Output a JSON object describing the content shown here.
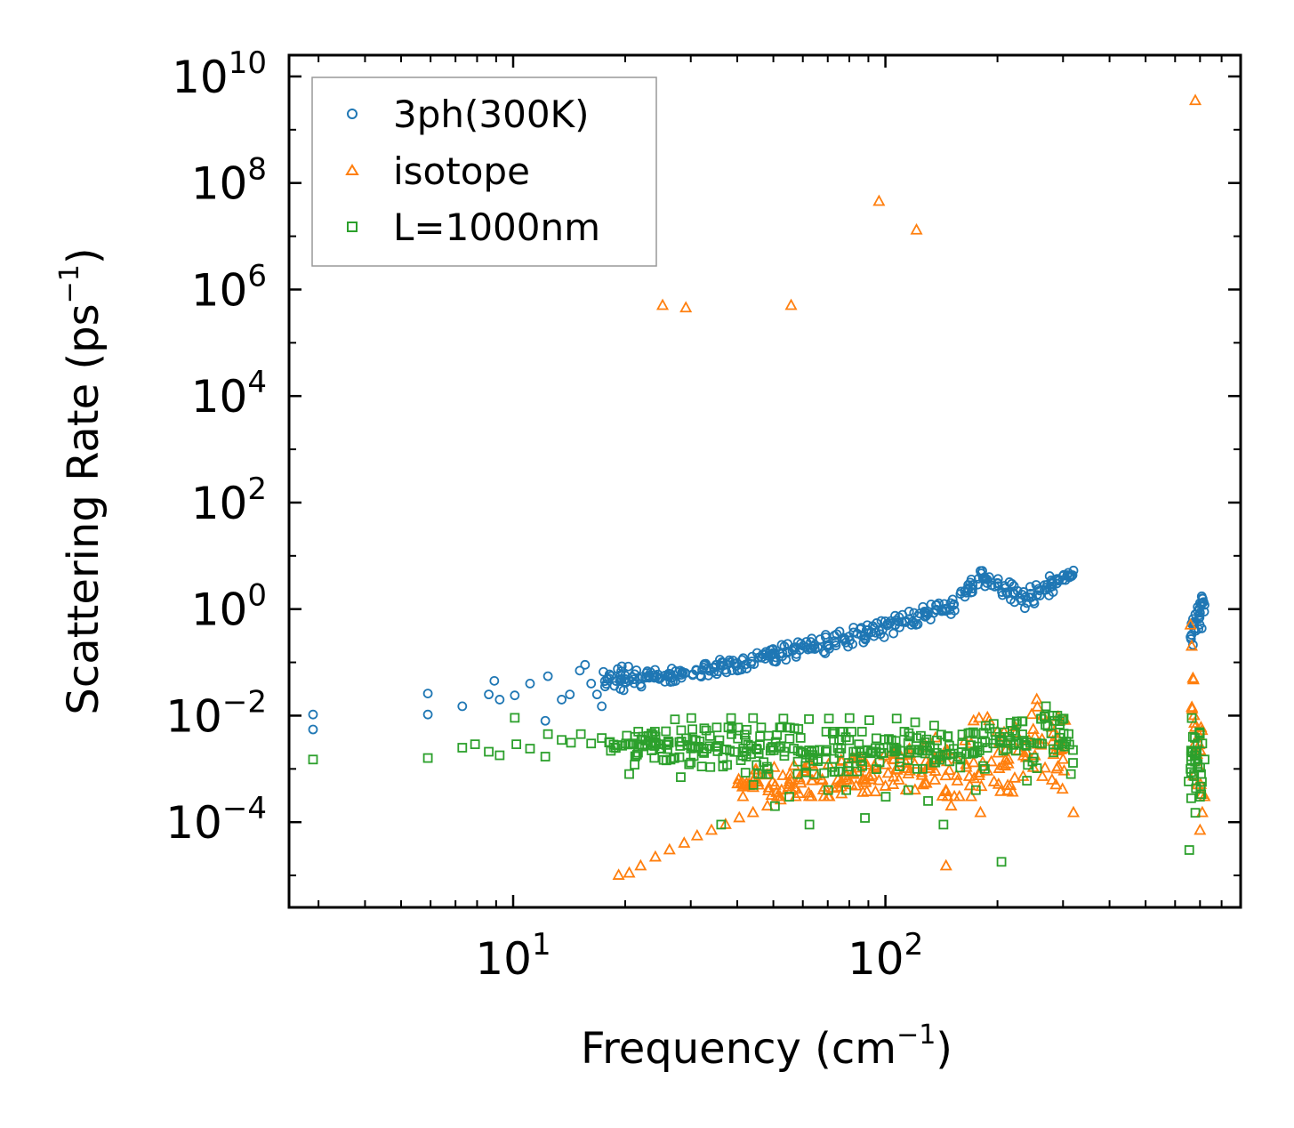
{
  "chart_data": {
    "type": "scatter",
    "xlabel": "Frequency (cm",
    "xlabel_sup": "−1",
    "xlabel_end": ")",
    "ylabel": "Scattering Rate (ps",
    "ylabel_sup": "−1",
    "ylabel_end": ")",
    "xscale": "log",
    "yscale": "log",
    "xlim": [
      2.5,
      900
    ],
    "ylim_log10": [
      -5.6,
      10.4
    ],
    "x_ticks": [
      {
        "value": 10,
        "base": "10",
        "exp": "1"
      },
      {
        "value": 100,
        "base": "10",
        "exp": "2"
      }
    ],
    "y_ticks": [
      {
        "value_log10": 10,
        "base": "10",
        "exp": "10"
      },
      {
        "value_log10": 8,
        "base": "10",
        "exp": "8"
      },
      {
        "value_log10": 6,
        "base": "10",
        "exp": "6"
      },
      {
        "value_log10": 4,
        "base": "10",
        "exp": "4"
      },
      {
        "value_log10": 2,
        "base": "10",
        "exp": "2"
      },
      {
        "value_log10": 0,
        "base": "10",
        "exp": "0"
      },
      {
        "value_log10": -2,
        "base": "10",
        "exp": "−2"
      },
      {
        "value_log10": -4,
        "base": "10",
        "exp": "−4"
      }
    ],
    "legend_position": "upper-left",
    "series": [
      {
        "name": "3ph(300K)",
        "marker": "circle",
        "color": "#1f77b4",
        "points": [
          [
            2.9,
            0.0105
          ],
          [
            2.9,
            0.0055
          ],
          [
            5.9,
            0.026
          ],
          [
            5.9,
            0.0105
          ],
          [
            7.3,
            0.015
          ],
          [
            8.6,
            0.025
          ],
          [
            8.9,
            0.045
          ],
          [
            9.2,
            0.02
          ],
          [
            10.1,
            0.024
          ],
          [
            11.1,
            0.04
          ],
          [
            12.4,
            0.055
          ],
          [
            12.2,
            0.008
          ],
          [
            13.5,
            0.02
          ],
          [
            14.2,
            0.025
          ],
          [
            15.1,
            0.07
          ],
          [
            15.6,
            0.09
          ],
          [
            16.2,
            0.04
          ],
          [
            16.8,
            0.025
          ],
          [
            17.3,
            0.015
          ],
          [
            18.1,
            0.05
          ],
          [
            19.1,
            0.075
          ],
          [
            19.8,
            0.03
          ],
          [
            20.5,
            0.045
          ],
          [
            21.2,
            0.06
          ],
          [
            22.1,
            0.035
          ],
          [
            23.4,
            0.065
          ],
          [
            24.8,
            0.05
          ],
          [
            26.2,
            0.055
          ],
          [
            28.1,
            0.07
          ],
          [
            30.4,
            0.06
          ],
          [
            32.5,
            0.08
          ],
          [
            35.1,
            0.09
          ],
          [
            38.2,
            0.1
          ],
          [
            41.5,
            0.12
          ],
          [
            45.2,
            0.15
          ],
          [
            49.1,
            0.17
          ],
          [
            53.5,
            0.2
          ],
          [
            58.2,
            0.24
          ],
          [
            63.4,
            0.28
          ],
          [
            69.1,
            0.33
          ],
          [
            75.3,
            0.38
          ],
          [
            82.1,
            0.45
          ],
          [
            89.4,
            0.5
          ],
          [
            97.5,
            0.6
          ],
          [
            106.2,
            0.75
          ],
          [
            115.8,
            0.9
          ],
          [
            126.1,
            1.1
          ],
          [
            137.4,
            1.2
          ],
          [
            149.7,
            1.3
          ],
          [
            180,
            5.2
          ],
          [
            190,
            4.0
          ],
          [
            200,
            3.1
          ],
          [
            210,
            2.5
          ],
          [
            220,
            2.0
          ],
          [
            230,
            1.6
          ],
          [
            240,
            1.3
          ],
          [
            250,
            1.4
          ],
          [
            260,
            1.8
          ],
          [
            270,
            2.3
          ],
          [
            280,
            3.0
          ],
          [
            290,
            3.6
          ],
          [
            300,
            4.2
          ],
          [
            310,
            4.8
          ],
          [
            320,
            5.3
          ],
          [
            660,
            0.3
          ],
          [
            670,
            0.5
          ],
          [
            680,
            0.8
          ],
          [
            690,
            1.1
          ],
          [
            700,
            1.3
          ],
          [
            710,
            1.6
          ],
          [
            720,
            1.2
          ]
        ],
        "band": [
          [
            17,
            0.03,
            0.08
          ],
          [
            20,
            0.03,
            0.085
          ],
          [
            25,
            0.04,
            0.07
          ],
          [
            30,
            0.05,
            0.09
          ],
          [
            40,
            0.07,
            0.13
          ],
          [
            50,
            0.1,
            0.2
          ],
          [
            60,
            0.13,
            0.25
          ],
          [
            70,
            0.15,
            0.3
          ],
          [
            80,
            0.2,
            0.4
          ],
          [
            90,
            0.25,
            0.5
          ],
          [
            100,
            0.3,
            0.6
          ],
          [
            110,
            0.4,
            0.8
          ],
          [
            120,
            0.5,
            1.0
          ],
          [
            130,
            0.6,
            1.2
          ],
          [
            140,
            0.7,
            1.3
          ],
          [
            150,
            0.8,
            1.4
          ],
          [
            180,
            3.0,
            5.5
          ],
          [
            200,
            2.0,
            4.0
          ],
          [
            220,
            1.3,
            3.0
          ],
          [
            240,
            1.0,
            2.5
          ],
          [
            260,
            1.3,
            3.0
          ],
          [
            280,
            2.0,
            4.5
          ],
          [
            300,
            3.0,
            5.0
          ],
          [
            320,
            3.5,
            5.5
          ],
          [
            660,
            0.15,
            1.0
          ],
          [
            680,
            0.3,
            1.5
          ],
          [
            700,
            0.4,
            1.7
          ],
          [
            720,
            0.5,
            1.8
          ]
        ]
      },
      {
        "name": "isotope",
        "marker": "triangle",
        "color": "#ff7f0e",
        "points": [
          [
            25.2,
            500000
          ],
          [
            29.1,
            450000
          ],
          [
            55.8,
            500000
          ],
          [
            96.1,
            45000000
          ],
          [
            121.2,
            13000000
          ],
          [
            680,
            3500000000
          ],
          [
            19.2,
            1e-05
          ],
          [
            20.5,
            1.1e-05
          ],
          [
            22.0,
            1.5e-05
          ],
          [
            24.1,
            2.2e-05
          ],
          [
            26.3,
            3e-05
          ],
          [
            28.8,
            4e-05
          ],
          [
            31.2,
            5.5e-05
          ],
          [
            34.1,
            7e-05
          ],
          [
            37.2,
            9e-05
          ],
          [
            40.5,
            0.00012
          ],
          [
            44.1,
            0.00015
          ],
          [
            48.2,
            0.0002
          ],
          [
            52.3,
            0.00026
          ],
          [
            57.4,
            0.0003
          ],
          [
            62.2,
            0.00035
          ],
          [
            68.1,
            0.0004
          ],
          [
            74.2,
            0.00045
          ],
          [
            81.1,
            0.0005
          ],
          [
            88.5,
            0.00055
          ],
          [
            96.1,
            0.0006
          ],
          [
            105.2,
            0.0007
          ],
          [
            115.3,
            0.0008
          ],
          [
            125.2,
            0.00085
          ],
          [
            136.1,
            0.0009
          ],
          [
            145.5,
            1.5e-05
          ],
          [
            150.2,
            0.0002
          ],
          [
            180,
            0.00015
          ],
          [
            190,
            0.008
          ],
          [
            200,
            0.005
          ],
          [
            220,
            0.003
          ],
          [
            240,
            0.002
          ],
          [
            255,
            0.02
          ],
          [
            265,
            0.01
          ],
          [
            280,
            0.006
          ],
          [
            300,
            0.0015
          ],
          [
            320,
            0.00015
          ],
          [
            660,
            0.5
          ],
          [
            665,
            0.2
          ],
          [
            670,
            0.05
          ],
          [
            675,
            0.01
          ],
          [
            680,
            0.002
          ],
          [
            690,
            0.0005
          ],
          [
            700,
            7e-05
          ],
          [
            710,
            0.00015
          ],
          [
            720,
            0.0003
          ]
        ],
        "band": [
          [
            40,
            0.0003,
            0.0009
          ],
          [
            60,
            0.0003,
            0.0012
          ],
          [
            80,
            0.0003,
            0.0015
          ],
          [
            100,
            0.0004,
            0.002
          ],
          [
            120,
            0.0004,
            0.003
          ],
          [
            140,
            0.0003,
            0.004
          ],
          [
            185,
            0.0003,
            0.01
          ],
          [
            210,
            0.0004,
            0.005
          ],
          [
            240,
            0.0003,
            0.008
          ],
          [
            265,
            0.0005,
            0.02
          ],
          [
            290,
            0.0005,
            0.012
          ],
          [
            315,
            0.0003,
            0.006
          ],
          [
            665,
            0.0008,
            0.4
          ],
          [
            690,
            0.0006,
            0.01
          ],
          [
            710,
            0.0003,
            0.005
          ]
        ]
      },
      {
        "name": "L=1000nm",
        "marker": "square",
        "color": "#2ca02c",
        "points": [
          [
            2.9,
            0.0015
          ],
          [
            5.9,
            0.0016
          ],
          [
            7.3,
            0.0025
          ],
          [
            7.9,
            0.0029
          ],
          [
            8.6,
            0.0021
          ],
          [
            9.2,
            0.0018
          ],
          [
            10.1,
            0.0091
          ],
          [
            10.2,
            0.0029
          ],
          [
            11.1,
            0.0024
          ],
          [
            12.4,
            0.0045
          ],
          [
            12.2,
            0.0017
          ],
          [
            13.5,
            0.0035
          ],
          [
            14.3,
            0.0031
          ],
          [
            15.2,
            0.0045
          ],
          [
            16.2,
            0.003
          ],
          [
            17.3,
            0.0038
          ],
          [
            18.2,
            0.0032
          ],
          [
            19.1,
            0.0028
          ],
          [
            20.2,
            0.0042
          ],
          [
            20.5,
            0.0008
          ],
          [
            21.2,
            0.0012
          ],
          [
            22.1,
            0.0036
          ],
          [
            23.4,
            0.0032
          ],
          [
            24.8,
            0.0029
          ],
          [
            26.2,
            0.0031
          ],
          [
            28.1,
            0.0027
          ],
          [
            30.4,
            0.0025
          ],
          [
            32.5,
            0.0024
          ],
          [
            35.1,
            0.0026
          ],
          [
            38.2,
            0.0022
          ],
          [
            41.5,
            0.0024
          ],
          [
            45.2,
            0.0023
          ],
          [
            49.1,
            0.0022
          ],
          [
            53.5,
            0.0021
          ],
          [
            58.2,
            0.0022
          ],
          [
            63.4,
            0.0021
          ],
          [
            69.1,
            0.0021
          ],
          [
            75.3,
            0.002
          ],
          [
            82.1,
            0.0021
          ],
          [
            89.4,
            0.0022
          ],
          [
            97.5,
            0.002
          ],
          [
            106.2,
            0.0021
          ],
          [
            115.8,
            0.002
          ],
          [
            126.1,
            0.0022
          ],
          [
            137.4,
            0.002
          ],
          [
            149.7,
            0.0019
          ],
          [
            27.2,
            0.0085
          ],
          [
            30.1,
            0.009
          ],
          [
            38.5,
            0.009
          ],
          [
            44.1,
            0.009
          ],
          [
            53.2,
            0.0088
          ],
          [
            62.3,
            0.0086
          ],
          [
            70.5,
            0.0088
          ],
          [
            80.1,
            0.009
          ],
          [
            90.5,
            0.0082
          ],
          [
            107.2,
            0.0088
          ],
          [
            120.2,
            0.0075
          ],
          [
            135.2,
            0.0065
          ],
          [
            28.2,
            0.0007
          ],
          [
            36.2,
            9e-05
          ],
          [
            44.2,
            0.0005
          ],
          [
            50.5,
            0.0002
          ],
          [
            55.2,
            0.0003
          ],
          [
            62.5,
            9e-05
          ],
          [
            70.2,
            0.0004
          ],
          [
            78.5,
            0.0004
          ],
          [
            88.1,
            0.00012
          ],
          [
            100.2,
            0.0003
          ],
          [
            115.2,
            0.0004
          ],
          [
            130.2,
            0.00025
          ],
          [
            143.2,
            9e-05
          ],
          [
            175,
            0.0004
          ],
          [
            185,
            0.001
          ],
          [
            195,
            0.003
          ],
          [
            205,
            1.8e-05
          ],
          [
            215,
            0.004
          ],
          [
            225,
            0.007
          ],
          [
            240,
            0.0006
          ],
          [
            260,
            0.003
          ],
          [
            270,
            0.015
          ],
          [
            285,
            0.008
          ],
          [
            300,
            0.003
          ],
          [
            315,
            0.0008
          ],
          [
            655,
            3e-05
          ],
          [
            660,
            0.001
          ],
          [
            665,
            0.009
          ],
          [
            670,
            0.004
          ],
          [
            675,
            0.0008
          ],
          [
            680,
            0.00015
          ],
          [
            690,
            0.003
          ],
          [
            700,
            0.0003
          ],
          [
            710,
            0.003
          ],
          [
            720,
            0.0015
          ]
        ],
        "band": [
          [
            18,
            0.002,
            0.005
          ],
          [
            25,
            0.0015,
            0.005
          ],
          [
            35,
            0.001,
            0.006
          ],
          [
            45,
            0.0008,
            0.006
          ],
          [
            55,
            0.0008,
            0.006
          ],
          [
            65,
            0.0008,
            0.005
          ],
          [
            75,
            0.0009,
            0.005
          ],
          [
            90,
            0.0009,
            0.005
          ],
          [
            110,
            0.001,
            0.005
          ],
          [
            130,
            0.001,
            0.005
          ],
          [
            150,
            0.0008,
            0.004
          ],
          [
            175,
            0.0008,
            0.005
          ],
          [
            190,
            0.0015,
            0.007
          ],
          [
            210,
            0.002,
            0.007
          ],
          [
            230,
            0.0015,
            0.008
          ],
          [
            250,
            0.0008,
            0.007
          ],
          [
            270,
            0.002,
            0.01
          ],
          [
            295,
            0.002,
            0.01
          ],
          [
            320,
            0.0008,
            0.006
          ],
          [
            650,
            0.0001,
            0.006
          ],
          [
            670,
            0.0005,
            0.01
          ],
          [
            690,
            0.0004,
            0.006
          ],
          [
            715,
            0.0003,
            0.003
          ]
        ]
      }
    ]
  }
}
